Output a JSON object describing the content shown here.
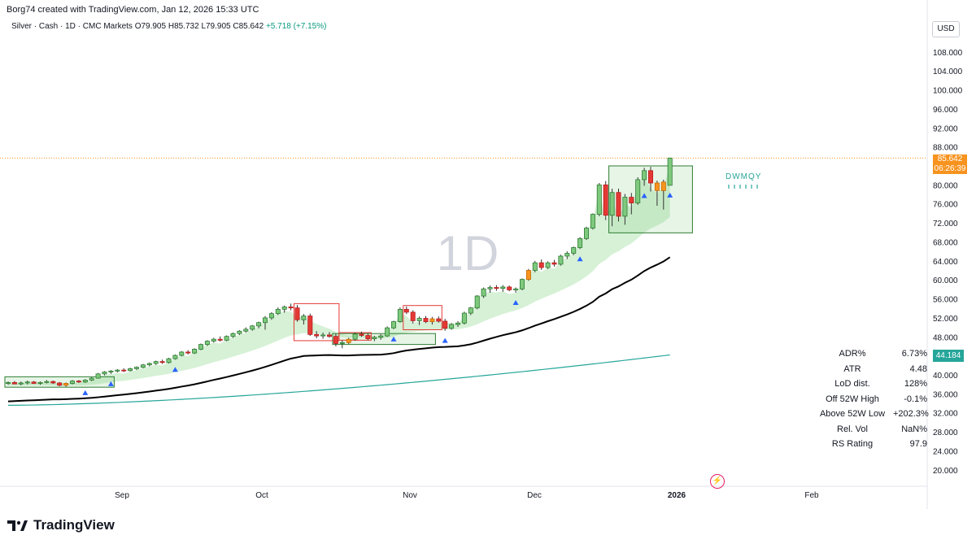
{
  "attribution": "Borg74 created with TradingView.com, Jan 12, 2026 15:33 UTC",
  "legend": {
    "symbol": "Silver · Cash · 1D · CMC Markets",
    "open": "O79.905",
    "high": "H85.732",
    "low": "L79.905",
    "close": "C85.642",
    "change": "+5.718 (+7.15%)"
  },
  "currency_button": "USD",
  "watermark": "1D",
  "price_tag": {
    "price": "85.642",
    "countdown": "06:26:39"
  },
  "ema_tag": "44.184",
  "dwmqy_label": "DWMQY",
  "stats": [
    {
      "label": "ADR%",
      "value": "6.73%"
    },
    {
      "label": "ATR",
      "value": "4.48"
    },
    {
      "label": "LoD dist.",
      "value": "128%"
    },
    {
      "label": "Off 52W High",
      "value": "-0.1%"
    },
    {
      "label": "Above 52W Low",
      "value": "+202.3%"
    },
    {
      "label": "Rel. Vol",
      "value": "NaN%"
    },
    {
      "label": "RS Rating",
      "value": "97.9"
    }
  ],
  "brand": "TradingView",
  "colors": {
    "up": "#2e7d32",
    "up_body": "#7fc97f",
    "down": "#e53935",
    "orange": "#f7931e",
    "ema_fill": "#c8ecc8",
    "ma_black": "#000000",
    "ma_teal": "#26a69a",
    "marker": "#2962ff"
  },
  "chart_data": {
    "type": "candlestick",
    "x_labels": [
      "Sep",
      "Oct",
      "Nov",
      "Dec",
      "2026",
      "Feb"
    ],
    "y_ticks": [
      20,
      24,
      28,
      32,
      36,
      40,
      44,
      48,
      52,
      56,
      60,
      64,
      68,
      72,
      76,
      80,
      84,
      88,
      92,
      96,
      100,
      104,
      108
    ],
    "ylim": [
      18,
      112
    ],
    "last_price": 85.642,
    "candles": [
      [
        38.2,
        38.6,
        37.9,
        38.4
      ],
      [
        38.4,
        38.7,
        38.0,
        38.1
      ],
      [
        38.1,
        38.6,
        37.8,
        38.3
      ],
      [
        38.3,
        38.8,
        38.0,
        38.5
      ],
      [
        38.5,
        38.7,
        38.1,
        38.2
      ],
      [
        38.2,
        38.6,
        37.9,
        38.4
      ],
      [
        38.4,
        38.9,
        38.2,
        38.6
      ],
      [
        38.6,
        38.8,
        38.1,
        38.3
      ],
      [
        38.3,
        38.5,
        37.6,
        37.8
      ],
      [
        37.8,
        38.4,
        37.5,
        38.2
      ],
      [
        38.2,
        38.9,
        38.0,
        38.7
      ],
      [
        38.7,
        38.9,
        38.3,
        38.5
      ],
      [
        38.5,
        39.1,
        38.3,
        38.9
      ],
      [
        38.9,
        39.5,
        38.7,
        39.3
      ],
      [
        39.3,
        40.4,
        39.2,
        40.2
      ],
      [
        40.2,
        40.8,
        39.9,
        40.6
      ],
      [
        40.6,
        41.0,
        40.2,
        40.8
      ],
      [
        40.8,
        41.2,
        40.5,
        41.0
      ],
      [
        41.0,
        41.4,
        40.6,
        40.9
      ],
      [
        40.9,
        41.5,
        40.7,
        41.3
      ],
      [
        41.3,
        41.8,
        41.0,
        41.6
      ],
      [
        41.6,
        42.3,
        41.4,
        42.1
      ],
      [
        42.1,
        42.6,
        41.8,
        42.4
      ],
      [
        42.4,
        43.0,
        42.1,
        42.8
      ],
      [
        42.8,
        43.2,
        42.3,
        42.6
      ],
      [
        42.6,
        43.6,
        42.4,
        43.4
      ],
      [
        43.4,
        44.3,
        43.2,
        44.1
      ],
      [
        44.1,
        45.0,
        43.9,
        44.8
      ],
      [
        44.8,
        45.2,
        44.3,
        44.6
      ],
      [
        44.6,
        45.6,
        44.4,
        45.4
      ],
      [
        45.4,
        46.6,
        45.2,
        46.4
      ],
      [
        46.4,
        47.3,
        46.1,
        47.1
      ],
      [
        47.1,
        47.8,
        46.8,
        47.5
      ],
      [
        47.5,
        48.1,
        47.0,
        47.3
      ],
      [
        47.3,
        48.3,
        47.1,
        48.1
      ],
      [
        48.1,
        48.9,
        47.8,
        48.7
      ],
      [
        48.7,
        49.4,
        48.4,
        49.2
      ],
      [
        49.2,
        50.0,
        48.9,
        49.6
      ],
      [
        49.6,
        50.5,
        49.3,
        50.3
      ],
      [
        50.3,
        51.2,
        49.8,
        51.0
      ],
      [
        51.0,
        52.4,
        49.5,
        52.0
      ],
      [
        52.0,
        53.2,
        51.6,
        52.9
      ],
      [
        52.9,
        54.2,
        52.6,
        53.8
      ],
      [
        53.8,
        54.6,
        53.1,
        54.3
      ],
      [
        54.3,
        55.0,
        53.6,
        54.1
      ],
      [
        54.1,
        54.7,
        51.2,
        51.6
      ],
      [
        51.6,
        52.8,
        50.6,
        52.4
      ],
      [
        52.4,
        52.9,
        48.2,
        48.5
      ],
      [
        48.5,
        49.2,
        47.7,
        48.2
      ],
      [
        48.2,
        48.9,
        47.6,
        48.4
      ],
      [
        48.4,
        49.0,
        47.8,
        48.1
      ],
      [
        48.1,
        48.6,
        46.0,
        46.6
      ],
      [
        46.6,
        47.3,
        45.6,
        46.8
      ],
      [
        46.8,
        47.8,
        46.5,
        47.5
      ],
      [
        47.5,
        48.9,
        47.2,
        48.6
      ],
      [
        48.6,
        49.1,
        48.0,
        48.3
      ],
      [
        48.3,
        48.7,
        47.3,
        47.6
      ],
      [
        47.6,
        48.2,
        47.1,
        47.9
      ],
      [
        47.9,
        48.6,
        47.4,
        48.2
      ],
      [
        48.2,
        50.2,
        48.0,
        49.9
      ],
      [
        49.9,
        51.4,
        49.6,
        51.2
      ],
      [
        51.2,
        54.2,
        51.0,
        53.8
      ],
      [
        53.8,
        54.4,
        52.8,
        53.2
      ],
      [
        53.2,
        53.6,
        50.8,
        51.4
      ],
      [
        51.4,
        52.3,
        50.5,
        51.9
      ],
      [
        51.9,
        52.4,
        50.9,
        51.2
      ],
      [
        51.2,
        52.2,
        50.6,
        51.8
      ],
      [
        51.8,
        52.3,
        51.0,
        51.3
      ],
      [
        51.3,
        51.8,
        49.3,
        49.8
      ],
      [
        49.8,
        50.9,
        49.5,
        50.6
      ],
      [
        50.6,
        51.3,
        50.1,
        50.9
      ],
      [
        50.9,
        53.3,
        50.6,
        53.0
      ],
      [
        53.0,
        54.3,
        52.6,
        54.1
      ],
      [
        54.1,
        56.8,
        53.8,
        56.6
      ],
      [
        56.6,
        58.4,
        56.2,
        58.1
      ],
      [
        58.1,
        58.8,
        57.3,
        58.4
      ],
      [
        58.4,
        58.9,
        57.7,
        58.2
      ],
      [
        58.2,
        58.9,
        57.5,
        58.5
      ],
      [
        58.5,
        58.8,
        57.6,
        57.9
      ],
      [
        57.9,
        58.4,
        57.3,
        58.1
      ],
      [
        58.1,
        60.3,
        57.8,
        60.1
      ],
      [
        60.1,
        62.3,
        59.8,
        62.0
      ],
      [
        62.0,
        64.0,
        61.6,
        63.6
      ],
      [
        63.6,
        64.3,
        62.1,
        62.6
      ],
      [
        62.6,
        63.9,
        62.3,
        63.6
      ],
      [
        63.6,
        64.2,
        62.8,
        63.3
      ],
      [
        63.3,
        65.3,
        63.0,
        65.0
      ],
      [
        65.0,
        66.0,
        64.4,
        65.6
      ],
      [
        65.6,
        67.0,
        65.2,
        66.8
      ],
      [
        66.8,
        69.0,
        66.5,
        68.7
      ],
      [
        68.7,
        71.2,
        68.4,
        70.9
      ],
      [
        70.9,
        74.0,
        70.6,
        73.8
      ],
      [
        73.8,
        80.4,
        73.4,
        80.0
      ],
      [
        80.0,
        80.8,
        72.6,
        73.6
      ],
      [
        73.6,
        79.2,
        71.3,
        78.4
      ],
      [
        78.4,
        79.2,
        72.3,
        73.4
      ],
      [
        73.4,
        78.1,
        71.6,
        77.4
      ],
      [
        77.4,
        78.3,
        73.8,
        76.2
      ],
      [
        76.2,
        81.6,
        75.8,
        81.1
      ],
      [
        81.1,
        83.6,
        79.8,
        83.0
      ],
      [
        83.0,
        83.8,
        78.6,
        80.4
      ],
      [
        80.4,
        80.9,
        75.6,
        78.8
      ],
      [
        78.8,
        81.1,
        74.8,
        80.6
      ],
      [
        79.905,
        85.732,
        79.905,
        85.642
      ]
    ]
  }
}
